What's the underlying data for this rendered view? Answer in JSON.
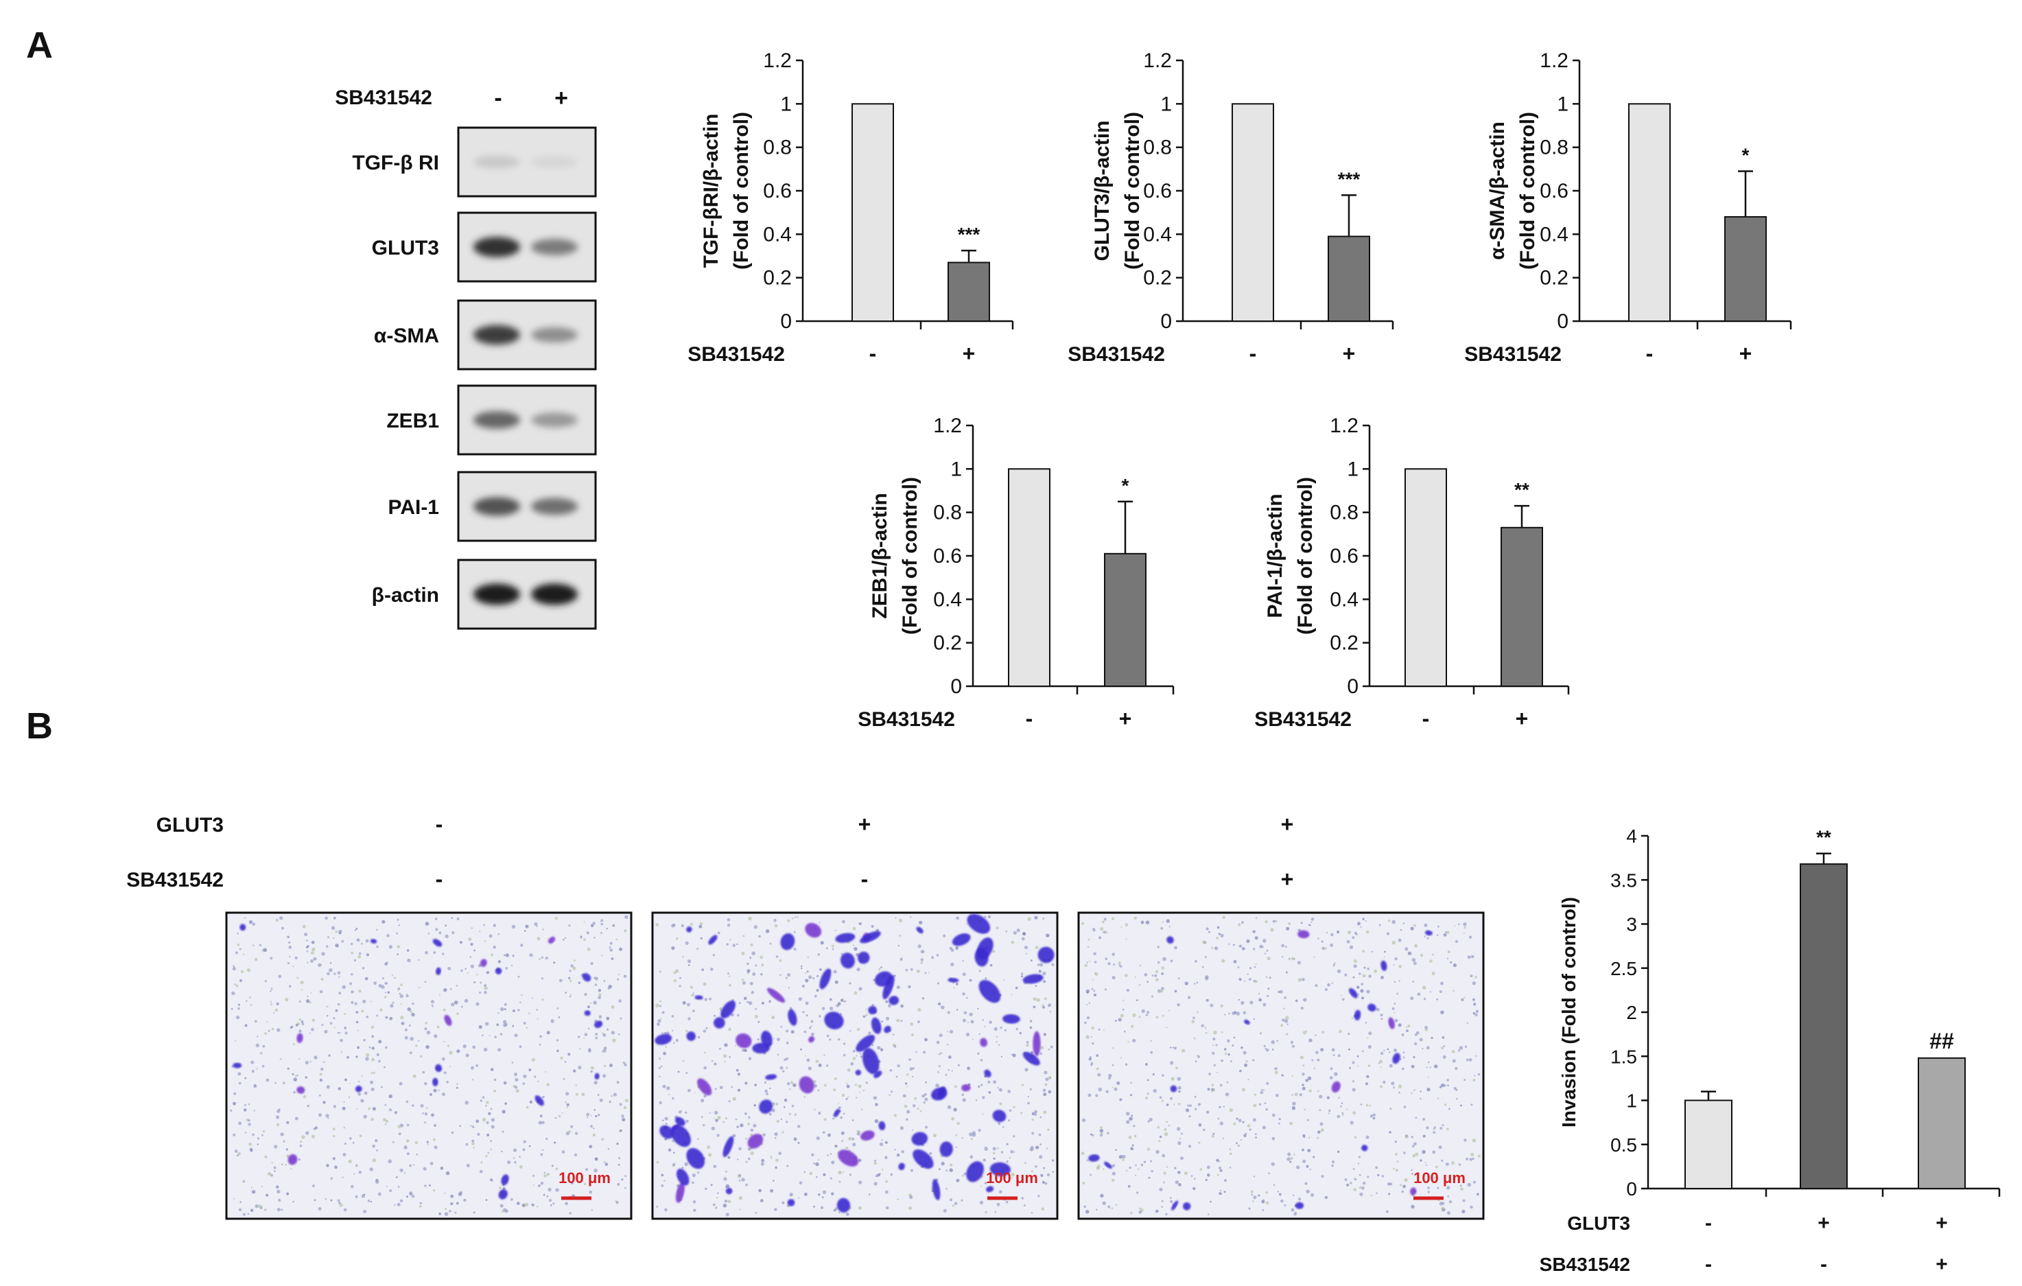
{
  "panels": {
    "a": {
      "label": "A"
    },
    "b": {
      "label": "B"
    }
  },
  "blot": {
    "treatment_label": "SB431542",
    "lane_signs": [
      "-",
      "+"
    ],
    "rows": [
      {
        "label": "TGF-β RI",
        "intensities": [
          0.12,
          0.06
        ]
      },
      {
        "label": "GLUT3",
        "intensities": [
          0.85,
          0.5
        ]
      },
      {
        "label": "α-SMA",
        "intensities": [
          0.8,
          0.4
        ]
      },
      {
        "label": "ZEB1",
        "intensities": [
          0.6,
          0.35
        ]
      },
      {
        "label": "PAI-1",
        "intensities": [
          0.7,
          0.55
        ]
      },
      {
        "label": "β-actin",
        "intensities": [
          0.95,
          0.95
        ]
      }
    ]
  },
  "micrographs": {
    "condition_labels": [
      "GLUT3",
      "SB431542"
    ],
    "conditions": [
      {
        "glut3": "-",
        "sb": "-",
        "scale": "100 μm",
        "cell_density": 0.2
      },
      {
        "glut3": "+",
        "sb": "-",
        "scale": "100 μm",
        "cell_density": 1.0
      },
      {
        "glut3": "+",
        "sb": "+",
        "scale": "100 μm",
        "cell_density": 0.15
      }
    ]
  },
  "colors": {
    "light_bar": "#e5e5e5",
    "dark_bar": "#777777",
    "darker_bar": "#666666",
    "mid_bar": "#a8a8a8",
    "scale_bar": "#d42020",
    "stain": "#3a2bd0"
  },
  "chart_data": [
    {
      "id": "tgfbri",
      "type": "bar",
      "title": "",
      "ylabel_lines": [
        "TGF-βRI/β-actin",
        "(Fold of control)"
      ],
      "xlabel": "",
      "row_labels": [
        "SB431542"
      ],
      "categories": [
        [
          "-"
        ],
        [
          "+"
        ]
      ],
      "values": [
        1,
        0.27
      ],
      "errors": [
        0,
        0.055
      ],
      "annotations": [
        "",
        "***"
      ],
      "ylim": [
        0,
        1.2
      ],
      "yticks": [
        0,
        0.2,
        0.4,
        0.6,
        0.8,
        1,
        1.2
      ],
      "ytick_labels": [
        "0",
        "0.2",
        "0.4",
        "0.6",
        "0.8",
        "1",
        "1.2"
      ]
    },
    {
      "id": "glut3",
      "type": "bar",
      "title": "",
      "ylabel_lines": [
        "GLUT3/β-actin",
        "(Fold of control)"
      ],
      "xlabel": "",
      "row_labels": [
        "SB431542"
      ],
      "categories": [
        [
          "-"
        ],
        [
          "+"
        ]
      ],
      "values": [
        1,
        0.39
      ],
      "errors": [
        0,
        0.19
      ],
      "annotations": [
        "",
        "***"
      ],
      "ylim": [
        0,
        1.2
      ],
      "yticks": [
        0,
        0.2,
        0.4,
        0.6,
        0.8,
        1,
        1.2
      ],
      "ytick_labels": [
        "0",
        "0.2",
        "0.4",
        "0.6",
        "0.8",
        "1",
        "1.2"
      ]
    },
    {
      "id": "asma",
      "type": "bar",
      "title": "",
      "ylabel_lines": [
        "α-SMA/β-actin",
        "(Fold of control)"
      ],
      "xlabel": "",
      "row_labels": [
        "SB431542"
      ],
      "categories": [
        [
          "-"
        ],
        [
          "+"
        ]
      ],
      "values": [
        1,
        0.48
      ],
      "errors": [
        0,
        0.21
      ],
      "annotations": [
        "",
        "*"
      ],
      "ylim": [
        0,
        1.2
      ],
      "yticks": [
        0,
        0.2,
        0.4,
        0.6,
        0.8,
        1,
        1.2
      ],
      "ytick_labels": [
        "0",
        "0.2",
        "0.4",
        "0.6",
        "0.8",
        "1",
        "1.2"
      ]
    },
    {
      "id": "zeb1",
      "type": "bar",
      "title": "",
      "ylabel_lines": [
        "ZEB1/β-actin",
        "(Fold of control)"
      ],
      "xlabel": "",
      "row_labels": [
        "SB431542"
      ],
      "categories": [
        [
          "-"
        ],
        [
          "+"
        ]
      ],
      "values": [
        1,
        0.61
      ],
      "errors": [
        0,
        0.24
      ],
      "annotations": [
        "",
        "*"
      ],
      "ylim": [
        0,
        1.2
      ],
      "yticks": [
        0,
        0.2,
        0.4,
        0.6,
        0.8,
        1,
        1.2
      ],
      "ytick_labels": [
        "0",
        "0.2",
        "0.4",
        "0.6",
        "0.8",
        "1",
        "1.2"
      ]
    },
    {
      "id": "pai1",
      "type": "bar",
      "title": "",
      "ylabel_lines": [
        "PAI-1/β-actin",
        "(Fold of control)"
      ],
      "xlabel": "",
      "row_labels": [
        "SB431542"
      ],
      "categories": [
        [
          "-"
        ],
        [
          "+"
        ]
      ],
      "values": [
        1,
        0.73
      ],
      "errors": [
        0,
        0.1
      ],
      "annotations": [
        "",
        "**"
      ],
      "ylim": [
        0,
        1.2
      ],
      "yticks": [
        0,
        0.2,
        0.4,
        0.6,
        0.8,
        1,
        1.2
      ],
      "ytick_labels": [
        "0",
        "0.2",
        "0.4",
        "0.6",
        "0.8",
        "1",
        "1.2"
      ]
    },
    {
      "id": "invasion",
      "type": "bar",
      "title": "",
      "ylabel_lines": [
        "Invasion (Fold of control)"
      ],
      "xlabel": "",
      "row_labels": [
        "GLUT3",
        "SB431542"
      ],
      "categories": [
        [
          "-",
          "-"
        ],
        [
          "+",
          "-"
        ],
        [
          "+",
          "+"
        ]
      ],
      "values": [
        1,
        3.68,
        1.48
      ],
      "errors": [
        0.1,
        0.12,
        0
      ],
      "annotations": [
        "",
        "**",
        "##"
      ],
      "ylim": [
        0,
        4
      ],
      "yticks": [
        0,
        0.5,
        1,
        1.5,
        2,
        2.5,
        3,
        3.5,
        4
      ],
      "ytick_labels": [
        "0",
        "0.5",
        "1",
        "1.5",
        "2",
        "2.5",
        "3",
        "3.5",
        "4"
      ]
    }
  ]
}
